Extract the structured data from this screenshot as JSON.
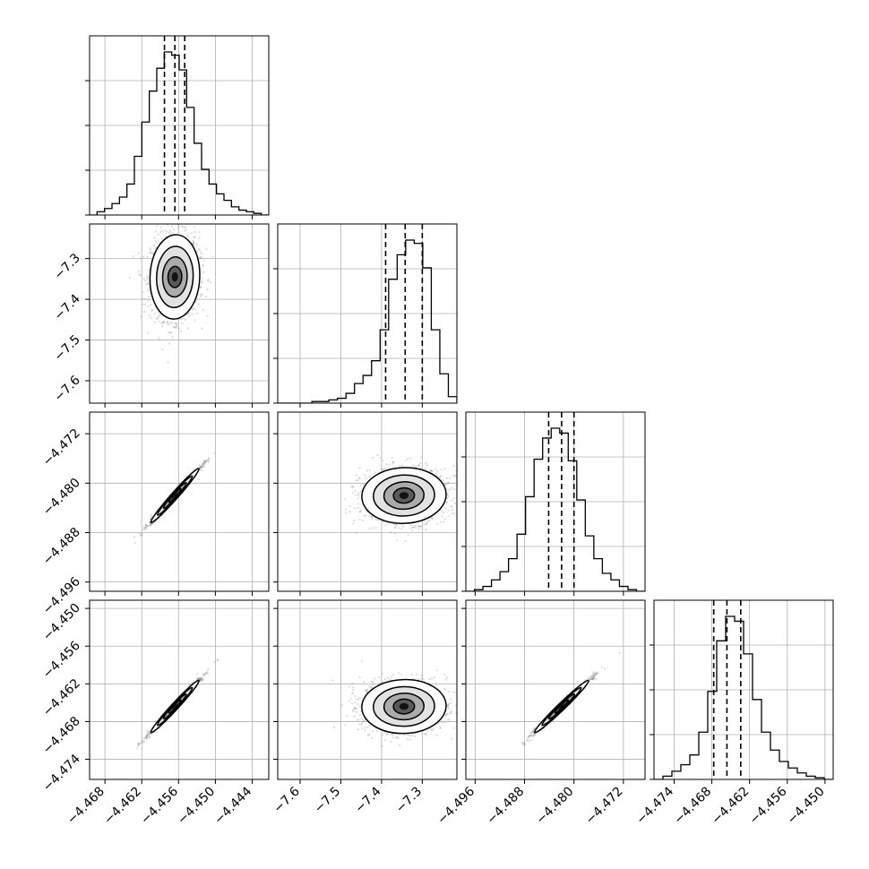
{
  "chart_data": {
    "type": "corner",
    "title": "",
    "grid": true,
    "colors": {
      "line": "#000000",
      "grid": "#b0b0b0",
      "scatter": "#7f7f7f"
    },
    "parameters": [
      {
        "range": [
          -4.4705,
          -4.4413
        ],
        "ticks": [
          "-4.468",
          "-4.462",
          "-4.456",
          "-4.450",
          "-4.444"
        ],
        "tick_values": [
          -4.468,
          -4.462,
          -4.456,
          -4.45,
          -4.444
        ],
        "quantiles": [
          -4.4583,
          -4.4566,
          -4.455
        ],
        "mean": -4.4566,
        "std": 0.0017,
        "hist": [
          0.0,
          0.02,
          0.04,
          0.07,
          0.11,
          0.19,
          0.36,
          0.57,
          0.76,
          0.9,
          1.0,
          0.98,
          0.89,
          0.66,
          0.44,
          0.28,
          0.19,
          0.13,
          0.09,
          0.05,
          0.03,
          0.02,
          0.01,
          0.0
        ],
        "hist_ticks": 3
      },
      {
        "range": [
          -7.655,
          -7.215
        ],
        "ticks": [
          "-7.6",
          "-7.5",
          "-7.4",
          "-7.3"
        ],
        "tick_values": [
          -7.6,
          -7.5,
          -7.4,
          -7.3
        ],
        "quantiles": [
          -7.39,
          -7.342,
          -7.3
        ],
        "mean": -7.345,
        "std": 0.045,
        "hist": [
          0.0,
          0.0,
          0.0,
          0.0,
          0.01,
          0.01,
          0.02,
          0.03,
          0.06,
          0.12,
          0.17,
          0.26,
          0.45,
          0.76,
          0.91,
          1.0,
          0.98,
          0.83,
          0.45,
          0.18,
          0.04
        ],
        "hist_ticks": 3
      },
      {
        "range": [
          -4.4975,
          -4.4685
        ],
        "ticks": [
          "-4.496",
          "-4.488",
          "-4.480",
          "-4.472"
        ],
        "tick_values": [
          -4.496,
          -4.488,
          -4.48,
          -4.472
        ],
        "quantiles": [
          -4.4841,
          -4.482,
          -4.48
        ],
        "mean": -4.482,
        "std": 0.0019,
        "hist": [
          0.0,
          0.01,
          0.03,
          0.07,
          0.12,
          0.2,
          0.35,
          0.58,
          0.81,
          0.94,
          1.0,
          0.97,
          0.8,
          0.56,
          0.34,
          0.2,
          0.11,
          0.07,
          0.03,
          0.01,
          0.0
        ],
        "hist_ticks": 3
      },
      {
        "range": [
          -4.4772,
          -4.4487
        ],
        "ticks": [
          "-4.474",
          "-4.468",
          "-4.462",
          "-4.456",
          "-4.450"
        ],
        "tick_values": [
          -4.474,
          -4.468,
          -4.462,
          -4.456,
          -4.45
        ],
        "quantiles": [
          -4.4677,
          -4.4656,
          -4.4634
        ],
        "mean": -4.4656,
        "std": 0.0018,
        "hist": [
          0.0,
          0.02,
          0.05,
          0.09,
          0.15,
          0.29,
          0.54,
          0.85,
          1.0,
          0.97,
          0.77,
          0.49,
          0.29,
          0.18,
          0.11,
          0.07,
          0.04,
          0.02,
          0.01,
          0.0
        ],
        "hist_ticks": 3
      }
    ],
    "correlations": [
      [
        1.0,
        0.05,
        0.99,
        0.99
      ],
      [
        0.05,
        1.0,
        0.04,
        0.03
      ],
      [
        0.99,
        0.04,
        1.0,
        0.99
      ],
      [
        0.99,
        0.03,
        0.99,
        1.0
      ]
    ]
  }
}
